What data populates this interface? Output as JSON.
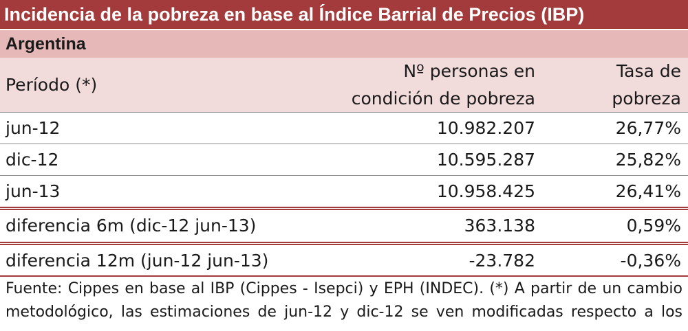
{
  "table": {
    "title": "Incidencia de la pobreza en base al Índice Barrial de Precios (IBP)",
    "subtitle": "Argentina",
    "headers": {
      "period": "Período (*)",
      "persons_line1": "Nº personas en",
      "persons_line2": "condición de pobreza",
      "rate_line1": "Tasa de",
      "rate_line2": "pobreza"
    },
    "rows": [
      {
        "period": "jun-12",
        "persons": "10.982.207",
        "rate": "26,77%"
      },
      {
        "period": "dic-12",
        "persons": "10.595.287",
        "rate": "25,82%"
      },
      {
        "period": "jun-13",
        "persons": "10.958.425",
        "rate": "26,41%"
      },
      {
        "period": "diferencia 6m (dic-12 jun-13)",
        "persons": "363.138",
        "rate": "0,59%"
      },
      {
        "period": "diferencia 12m (jun-12 jun-13)",
        "persons": "-23.782",
        "rate": "-0,36%"
      }
    ],
    "footnote_line1": "Fuente: Cippes en base al IBP (Cippes - Isepci) y EPH (INDEC). (*) A partir de un cambio",
    "footnote_line2": "metodológico, las estimaciones de jun-12 y dic-12 se ven modificadas respecto a los"
  },
  "colors": {
    "title_bg": "#a33b3c",
    "subtitle_bg": "#e6b9b8",
    "header_bg": "#f2dcdb",
    "rule": "#a33b3c"
  }
}
